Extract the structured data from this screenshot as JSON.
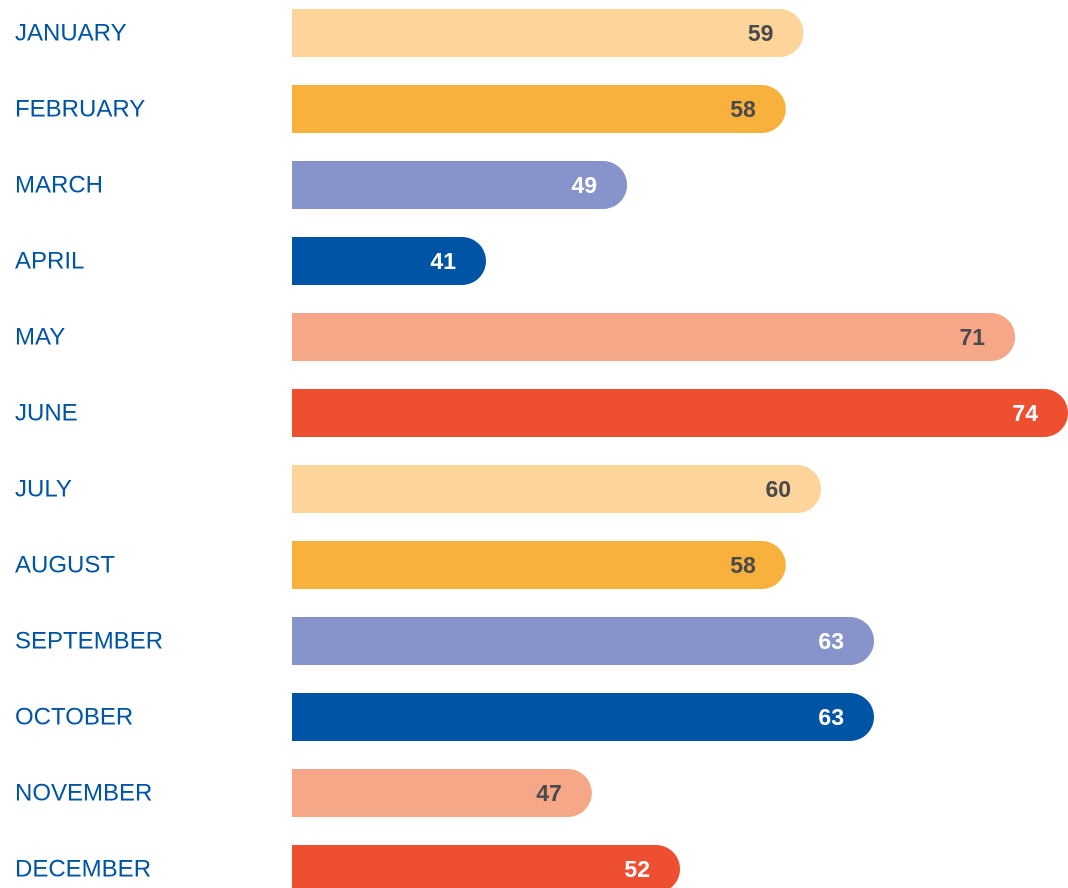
{
  "chart_data": {
    "type": "bar",
    "orientation": "horizontal",
    "categories": [
      "JANUARY",
      "FEBRUARY",
      "MARCH",
      "APRIL",
      "MAY",
      "JUNE",
      "JULY",
      "AUGUST",
      "SEPTEMBER",
      "OCTOBER",
      "NOVEMBER",
      "DECEMBER"
    ],
    "values": [
      59,
      58,
      49,
      41,
      71,
      74,
      60,
      58,
      63,
      63,
      47,
      52
    ],
    "colors": [
      "#fdd499",
      "#f9b13d",
      "#8694cb",
      "#0054a6",
      "#f6a788",
      "#ef4f31",
      "#fdd499",
      "#f9b13d",
      "#8694cb",
      "#0054a6",
      "#f6a788",
      "#ef4f31"
    ],
    "xlim": [
      30,
      74
    ]
  }
}
